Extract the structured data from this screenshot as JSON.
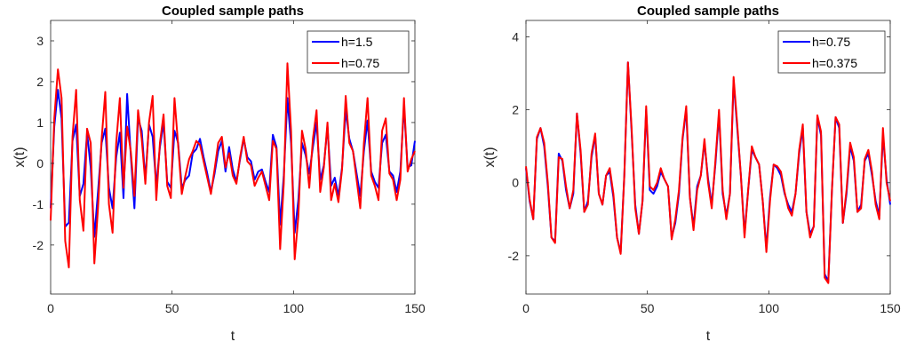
{
  "chart_data": [
    {
      "type": "line",
      "title": "Coupled sample paths",
      "xlabel": "t",
      "ylabel": "x(t)",
      "xlim": [
        0,
        150
      ],
      "ylim": [
        -3.2,
        3.5
      ],
      "xticks": [
        0,
        50,
        100,
        150
      ],
      "yticks": [
        -2,
        -1,
        0,
        1,
        2,
        3
      ],
      "grid": false,
      "legend_position": "top-right",
      "series": [
        {
          "name": "h=1.5",
          "color": "#0000ff",
          "x": [
            0,
            1.5,
            3,
            4.5,
            6,
            7.5,
            9,
            10.5,
            12,
            13.5,
            15,
            16.5,
            18,
            19.5,
            21,
            22.5,
            24,
            25.5,
            27,
            28.5,
            30,
            31.5,
            33,
            34.5,
            36,
            37.5,
            39,
            40.5,
            42,
            43.5,
            45,
            46.5,
            48,
            49.5,
            51,
            52.5,
            54,
            55.5,
            57,
            58.5,
            60,
            61.5,
            63,
            64.5,
            66,
            67.5,
            69,
            70.5,
            72,
            73.5,
            75,
            76.5,
            78,
            79.5,
            81,
            82.5,
            84,
            85.5,
            87,
            88.5,
            90,
            91.5,
            93,
            94.5,
            96,
            97.5,
            99,
            100.5,
            102,
            103.5,
            105,
            106.5,
            108,
            109.5,
            111,
            112.5,
            114,
            115.5,
            117,
            118.5,
            120,
            121.5,
            123,
            124.5,
            126,
            127.5,
            129,
            130.5,
            132,
            133.5,
            135,
            136.5,
            138,
            139.5,
            141,
            142.5,
            144,
            145.5,
            147,
            148.5,
            150
          ],
          "y": [
            -1.1,
            0.9,
            1.8,
            1.1,
            -1.55,
            -1.45,
            0.55,
            0.95,
            -0.8,
            -0.5,
            0.75,
            -0.1,
            -1.8,
            -0.7,
            0.5,
            0.85,
            -0.6,
            -1.1,
            0.15,
            0.75,
            -0.85,
            1.7,
            0.2,
            -1.1,
            1.1,
            0.8,
            -0.4,
            0.95,
            0.65,
            -0.55,
            0.4,
            1.0,
            -0.45,
            -0.6,
            0.8,
            0.5,
            -0.6,
            -0.4,
            -0.3,
            0.25,
            0.35,
            0.6,
            0.15,
            -0.25,
            -0.7,
            -0.25,
            0.3,
            0.55,
            -0.2,
            0.4,
            -0.15,
            -0.45,
            0.1,
            0.6,
            0.15,
            0.05,
            -0.4,
            -0.2,
            -0.15,
            -0.45,
            -0.7,
            0.7,
            0.4,
            -1.5,
            -0.3,
            1.6,
            0.5,
            -1.7,
            -0.9,
            0.5,
            0.2,
            -0.25,
            0.4,
            1.0,
            -0.4,
            -0.05,
            0.9,
            -0.55,
            -0.35,
            -0.8,
            -0.1,
            1.3,
            0.6,
            0.3,
            -0.25,
            -0.8,
            0.3,
            1.05,
            -0.2,
            -0.45,
            -0.6,
            0.5,
            0.7,
            -0.2,
            -0.3,
            -0.7,
            -0.2,
            1.4,
            -0.1,
            -0.05,
            0.55
          ]
        },
        {
          "name": "h=0.75",
          "color": "#ff0000",
          "x": [
            0,
            1.5,
            3,
            4.5,
            6,
            7.5,
            9,
            10.5,
            12,
            13.5,
            15,
            16.5,
            18,
            19.5,
            21,
            22.5,
            24,
            25.5,
            27,
            28.5,
            30,
            31.5,
            33,
            34.5,
            36,
            37.5,
            39,
            40.5,
            42,
            43.5,
            45,
            46.5,
            48,
            49.5,
            51,
            52.5,
            54,
            55.5,
            57,
            58.5,
            60,
            61.5,
            63,
            64.5,
            66,
            67.5,
            69,
            70.5,
            72,
            73.5,
            75,
            76.5,
            78,
            79.5,
            81,
            82.5,
            84,
            85.5,
            87,
            88.5,
            90,
            91.5,
            93,
            94.5,
            96,
            97.5,
            99,
            100.5,
            102,
            103.5,
            105,
            106.5,
            108,
            109.5,
            111,
            112.5,
            114,
            115.5,
            117,
            118.5,
            120,
            121.5,
            123,
            124.5,
            126,
            127.5,
            129,
            130.5,
            132,
            133.5,
            135,
            136.5,
            138,
            139.5,
            141,
            142.5,
            144,
            145.5,
            147,
            148.5,
            150
          ],
          "y": [
            -1.4,
            1.1,
            2.3,
            1.6,
            -1.9,
            -2.55,
            0.65,
            1.8,
            -0.9,
            -1.65,
            0.85,
            0.5,
            -2.45,
            -1.1,
            0.6,
            1.75,
            -1.0,
            -1.7,
            0.5,
            1.6,
            -0.6,
            0.9,
            0.3,
            -0.8,
            1.3,
            0.6,
            -0.5,
            1.0,
            1.65,
            -0.9,
            0.5,
            1.2,
            -0.55,
            -0.85,
            1.6,
            0.45,
            -0.75,
            -0.3,
            0.1,
            0.3,
            0.55,
            0.45,
            0.05,
            -0.35,
            -0.75,
            -0.15,
            0.5,
            0.65,
            -0.1,
            0.25,
            -0.3,
            -0.5,
            0.15,
            0.65,
            0.05,
            -0.05,
            -0.55,
            -0.35,
            -0.2,
            -0.55,
            -0.9,
            0.55,
            0.35,
            -2.1,
            -0.5,
            2.45,
            0.8,
            -2.35,
            -1.3,
            0.8,
            0.35,
            -0.6,
            0.6,
            1.3,
            -0.7,
            -0.1,
            1.0,
            -0.9,
            -0.5,
            -0.95,
            -0.15,
            1.65,
            0.5,
            0.3,
            -0.4,
            -1.1,
            0.5,
            1.6,
            -0.3,
            -0.55,
            -0.9,
            0.8,
            1.1,
            -0.25,
            -0.4,
            -0.9,
            -0.4,
            1.6,
            -0.2,
            0.1,
            0.3
          ]
        }
      ]
    },
    {
      "type": "line",
      "title": "Coupled sample paths",
      "xlabel": "t",
      "ylabel": "x(t)",
      "xlim": [
        0,
        150
      ],
      "ylim": [
        -3.05,
        4.45
      ],
      "xticks": [
        0,
        50,
        100,
        150
      ],
      "yticks": [
        -2,
        0,
        2,
        4
      ],
      "grid": false,
      "legend_position": "top-right",
      "series": [
        {
          "name": "h=0.75",
          "color": "#0000ff",
          "x": [
            0,
            1.5,
            3,
            4.5,
            6,
            7.5,
            9,
            10.5,
            12,
            13.5,
            15,
            16.5,
            18,
            19.5,
            21,
            22.5,
            24,
            25.5,
            27,
            28.5,
            30,
            31.5,
            33,
            34.5,
            36,
            37.5,
            39,
            40.5,
            42,
            43.5,
            45,
            46.5,
            48,
            49.5,
            51,
            52.5,
            54,
            55.5,
            57,
            58.5,
            60,
            61.5,
            63,
            64.5,
            66,
            67.5,
            69,
            70.5,
            72,
            73.5,
            75,
            76.5,
            78,
            79.5,
            81,
            82.5,
            84,
            85.5,
            87,
            88.5,
            90,
            91.5,
            93,
            94.5,
            96,
            97.5,
            99,
            100.5,
            102,
            103.5,
            105,
            106.5,
            108,
            109.5,
            111,
            112.5,
            114,
            115.5,
            117,
            118.5,
            120,
            121.5,
            123,
            124.5,
            126,
            127.5,
            129,
            130.5,
            132,
            133.5,
            135,
            136.5,
            138,
            139.5,
            141,
            142.5,
            144,
            145.5,
            147,
            148.5,
            150
          ],
          "y": [
            0.4,
            -0.5,
            -1.0,
            1.2,
            1.5,
            1.0,
            -0.1,
            -1.5,
            -1.6,
            0.8,
            0.6,
            -0.2,
            -0.7,
            -0.3,
            1.9,
            0.8,
            -0.8,
            -0.5,
            0.7,
            1.3,
            -0.3,
            -0.6,
            0.2,
            0.3,
            -0.4,
            -1.5,
            -1.9,
            0.2,
            3.3,
            1.4,
            -0.6,
            -1.4,
            -0.5,
            2.0,
            -0.2,
            -0.3,
            -0.1,
            0.3,
            0.1,
            -0.1,
            -1.5,
            -1.1,
            -0.3,
            1.2,
            2.0,
            -0.4,
            -1.2,
            -0.1,
            0.2,
            1.1,
            0.1,
            -0.6,
            0.5,
            1.9,
            -0.3,
            -0.9,
            -0.3,
            2.8,
            1.5,
            0.2,
            -1.4,
            -0.2,
            0.9,
            0.7,
            0.5,
            -0.5,
            -1.8,
            -0.4,
            0.5,
            0.4,
            0.2,
            -0.3,
            -0.6,
            -0.8,
            -0.3,
            0.8,
            1.5,
            -0.8,
            -1.4,
            -1.2,
            1.8,
            1.3,
            -2.5,
            -2.7,
            -0.2,
            1.8,
            1.5,
            -1.1,
            -0.3,
            1.0,
            0.6,
            -0.8,
            -0.6,
            0.6,
            0.8,
            0.2,
            -0.5,
            -0.9,
            1.3,
            0.1,
            -0.6
          ]
        },
        {
          "name": "h=0.375",
          "color": "#ff0000",
          "x": [
            0,
            1.5,
            3,
            4.5,
            6,
            7.5,
            9,
            10.5,
            12,
            13.5,
            15,
            16.5,
            18,
            19.5,
            21,
            22.5,
            24,
            25.5,
            27,
            28.5,
            30,
            31.5,
            33,
            34.5,
            36,
            37.5,
            39,
            40.5,
            42,
            43.5,
            45,
            46.5,
            48,
            49.5,
            51,
            52.5,
            54,
            55.5,
            57,
            58.5,
            60,
            61.5,
            63,
            64.5,
            66,
            67.5,
            69,
            70.5,
            72,
            73.5,
            75,
            76.5,
            78,
            79.5,
            81,
            82.5,
            84,
            85.5,
            87,
            88.5,
            90,
            91.5,
            93,
            94.5,
            96,
            97.5,
            99,
            100.5,
            102,
            103.5,
            105,
            106.5,
            108,
            109.5,
            111,
            112.5,
            114,
            115.5,
            117,
            118.5,
            120,
            121.5,
            123,
            124.5,
            126,
            127.5,
            129,
            130.5,
            132,
            133.5,
            135,
            136.5,
            138,
            139.5,
            141,
            142.5,
            144,
            145.5,
            147,
            148.5,
            150
          ],
          "y": [
            0.45,
            -0.45,
            -1.0,
            1.25,
            1.5,
            1.1,
            0.0,
            -1.5,
            -1.65,
            0.7,
            0.65,
            -0.1,
            -0.7,
            -0.2,
            1.9,
            0.9,
            -0.8,
            -0.6,
            0.8,
            1.35,
            -0.3,
            -0.6,
            0.2,
            0.4,
            -0.3,
            -1.5,
            -1.95,
            0.2,
            3.3,
            1.5,
            -0.7,
            -1.4,
            -0.5,
            2.1,
            -0.1,
            -0.2,
            0.0,
            0.4,
            0.1,
            -0.1,
            -1.55,
            -1.0,
            -0.2,
            1.25,
            2.1,
            -0.4,
            -1.3,
            -0.2,
            0.2,
            1.2,
            0.0,
            -0.7,
            0.6,
            2.0,
            -0.2,
            -1.0,
            -0.3,
            2.9,
            1.6,
            0.2,
            -1.5,
            -0.2,
            1.0,
            0.7,
            0.5,
            -0.5,
            -1.9,
            -0.5,
            0.5,
            0.45,
            0.3,
            -0.25,
            -0.7,
            -0.9,
            -0.3,
            0.9,
            1.6,
            -0.8,
            -1.5,
            -1.2,
            1.85,
            1.4,
            -2.6,
            -2.75,
            -0.2,
            1.8,
            1.6,
            -1.1,
            -0.2,
            1.1,
            0.7,
            -0.8,
            -0.7,
            0.65,
            0.9,
            0.3,
            -0.6,
            -1.0,
            1.5,
            0.0,
            -0.5
          ]
        }
      ]
    }
  ]
}
